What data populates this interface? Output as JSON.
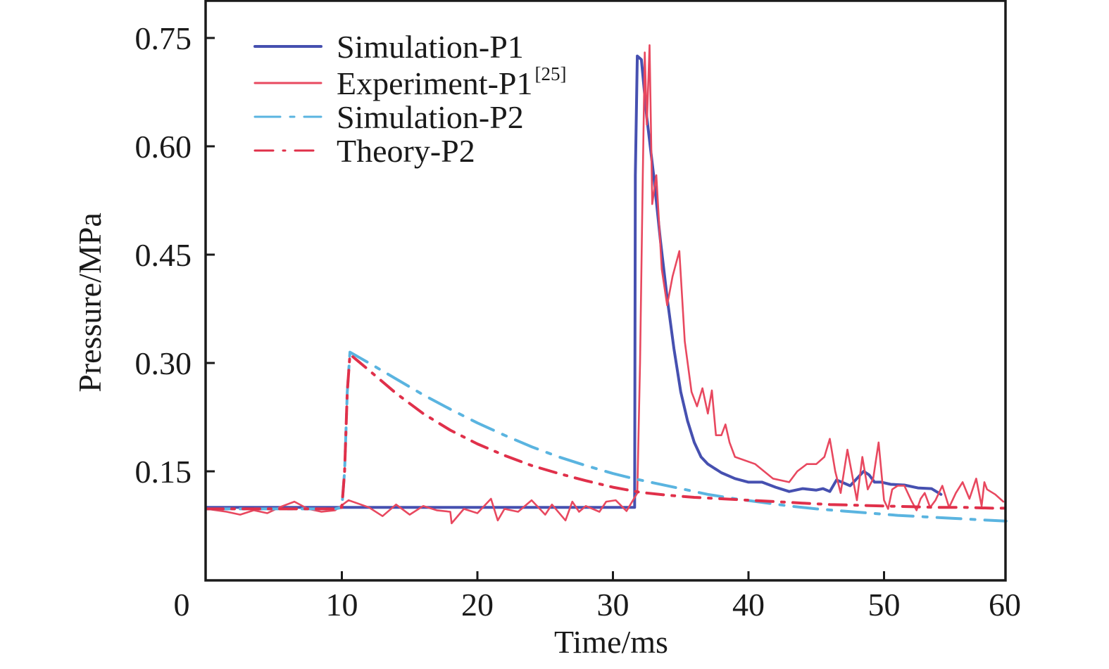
{
  "chart_data": {
    "type": "line",
    "title": "",
    "xlabel": "Time/ms",
    "ylabel": "Pressure/MPa",
    "xlim": [
      0,
      60
    ],
    "ylim": [
      0,
      0.8
    ],
    "grid": false,
    "x_ticks": [
      {
        "value": 0,
        "label": "0"
      },
      {
        "value": 10,
        "label": "10"
      },
      {
        "value": 20,
        "label": "20"
      },
      {
        "value": 30,
        "label": "30"
      },
      {
        "value": 40,
        "label": "40"
      },
      {
        "value": 50,
        "label": "50"
      },
      {
        "value": 60,
        "label": "60"
      }
    ],
    "y_ticks": [
      {
        "value": 0,
        "label": "0"
      },
      {
        "value": 0.15,
        "label": "0.15"
      },
      {
        "value": 0.3,
        "label": "0.30"
      },
      {
        "value": 0.45,
        "label": "0.45"
      },
      {
        "value": 0.6,
        "label": "0.60"
      },
      {
        "value": 0.75,
        "label": "0.75"
      }
    ],
    "legend_position": "top-left",
    "series": [
      {
        "name": "Simulation-P1",
        "legend_label": "Simulation-P1",
        "legend_sup": "",
        "color": "#4650b0",
        "style": "solid",
        "x": [
          0,
          31.6,
          31.65,
          31.8,
          32.1,
          32.5,
          33.0,
          33.5,
          34.0,
          34.5,
          35.0,
          35.5,
          36.0,
          36.5,
          37.0,
          38.0,
          39.0,
          40.0,
          41.0,
          42.0,
          43.0,
          44.0,
          45.0,
          45.5,
          46.0,
          46.5,
          47.0,
          47.5,
          48.0,
          48.5,
          48.9,
          49.3,
          49.8,
          50.5,
          51.5,
          52.5,
          53.5,
          54.2
        ],
        "y": [
          0.1,
          0.1,
          0.56,
          0.725,
          0.72,
          0.64,
          0.56,
          0.47,
          0.39,
          0.32,
          0.26,
          0.22,
          0.19,
          0.17,
          0.16,
          0.148,
          0.14,
          0.135,
          0.135,
          0.128,
          0.122,
          0.126,
          0.124,
          0.126,
          0.122,
          0.138,
          0.134,
          0.13,
          0.14,
          0.15,
          0.145,
          0.135,
          0.135,
          0.132,
          0.131,
          0.127,
          0.126,
          0.118
        ]
      },
      {
        "name": "Experiment-P1",
        "legend_label": "Experiment-P1",
        "legend_sup": "[25]",
        "color": "#e8485f",
        "style": "solid",
        "x": [
          0,
          1.5,
          2.5,
          3.5,
          4.5,
          5.5,
          6.5,
          7.5,
          8.5,
          9.5,
          10.5,
          12,
          13,
          14,
          15,
          16,
          17,
          18,
          18.1,
          19,
          20,
          21,
          21.5,
          22,
          23,
          24,
          25,
          25.5,
          26.5,
          27,
          27.5,
          28,
          29,
          29.5,
          30.2,
          31,
          31.8,
          32.0,
          32.2,
          32.35,
          32.5,
          32.7,
          32.9,
          33.2,
          33.6,
          34.0,
          34.4,
          34.9,
          35.3,
          35.8,
          36.2,
          36.6,
          37.0,
          37.3,
          37.6,
          38.0,
          38.3,
          38.6,
          39.0,
          40.5,
          41.8,
          43.0,
          43.6,
          44.3,
          45.0,
          45.6,
          46.0,
          46.4,
          46.8,
          47.3,
          47.7,
          48.0,
          48.4,
          48.8,
          49.2,
          49.6,
          50.0,
          50.3,
          50.6,
          51.0,
          51.5,
          52.0,
          52.4,
          52.7,
          53.0,
          53.4,
          53.8,
          54.3,
          54.8,
          55.3,
          55.8,
          56.3,
          56.8,
          57.2,
          57.4,
          57.6,
          58.2,
          58.8
        ],
        "y": [
          0.098,
          0.094,
          0.09,
          0.096,
          0.092,
          0.101,
          0.108,
          0.098,
          0.094,
          0.096,
          0.11,
          0.1,
          0.088,
          0.104,
          0.09,
          0.102,
          0.096,
          0.094,
          0.078,
          0.098,
          0.092,
          0.112,
          0.082,
          0.098,
          0.094,
          0.11,
          0.09,
          0.104,
          0.082,
          0.108,
          0.094,
          0.102,
          0.094,
          0.108,
          0.11,
          0.095,
          0.12,
          0.3,
          0.56,
          0.73,
          0.63,
          0.74,
          0.52,
          0.56,
          0.43,
          0.38,
          0.42,
          0.455,
          0.33,
          0.26,
          0.24,
          0.265,
          0.23,
          0.262,
          0.2,
          0.2,
          0.215,
          0.19,
          0.17,
          0.16,
          0.14,
          0.135,
          0.15,
          0.16,
          0.16,
          0.17,
          0.195,
          0.15,
          0.12,
          0.18,
          0.14,
          0.11,
          0.17,
          0.125,
          0.14,
          0.19,
          0.11,
          0.098,
          0.125,
          0.13,
          0.13,
          0.11,
          0.096,
          0.112,
          0.12,
          0.1,
          0.11,
          0.13,
          0.1,
          0.12,
          0.135,
          0.112,
          0.14,
          0.102,
          0.135,
          0.125,
          0.118,
          0.108
        ]
      },
      {
        "name": "Simulation-P2",
        "legend_label": "Simulation-P2",
        "legend_sup": "",
        "color": "#5ab4e0",
        "style": "dash-dot",
        "x": [
          0,
          9.5,
          10.0,
          10.2,
          10.4,
          10.6,
          12,
          14,
          16,
          18,
          20,
          22,
          24,
          26,
          28,
          30,
          31.5,
          33,
          35,
          37,
          39,
          41,
          43,
          45,
          47,
          49,
          51,
          53,
          55,
          57,
          59
        ],
        "y": [
          0.098,
          0.098,
          0.1,
          0.15,
          0.26,
          0.315,
          0.3,
          0.278,
          0.256,
          0.236,
          0.217,
          0.2,
          0.184,
          0.17,
          0.158,
          0.147,
          0.14,
          0.134,
          0.126,
          0.118,
          0.112,
          0.107,
          0.102,
          0.098,
          0.095,
          0.092,
          0.089,
          0.087,
          0.085,
          0.083,
          0.081
        ]
      },
      {
        "name": "Theory-P2",
        "legend_label": "Theory-P2",
        "legend_sup": "",
        "color": "#e0304a",
        "style": "dash-dot",
        "x": [
          0,
          9.5,
          10.0,
          10.2,
          10.4,
          10.6,
          12,
          14,
          16,
          18,
          20,
          22,
          24,
          26,
          28,
          30,
          32,
          34,
          36,
          38,
          40,
          42,
          44,
          46,
          48,
          50,
          52,
          54,
          56,
          58,
          59
        ],
        "y": [
          0.098,
          0.098,
          0.1,
          0.15,
          0.26,
          0.312,
          0.29,
          0.258,
          0.23,
          0.207,
          0.188,
          0.172,
          0.158,
          0.147,
          0.137,
          0.128,
          0.121,
          0.117,
          0.114,
          0.112,
          0.11,
          0.108,
          0.106,
          0.104,
          0.103,
          0.102,
          0.101,
          0.1,
          0.1,
          0.099,
          0.099
        ]
      }
    ]
  }
}
